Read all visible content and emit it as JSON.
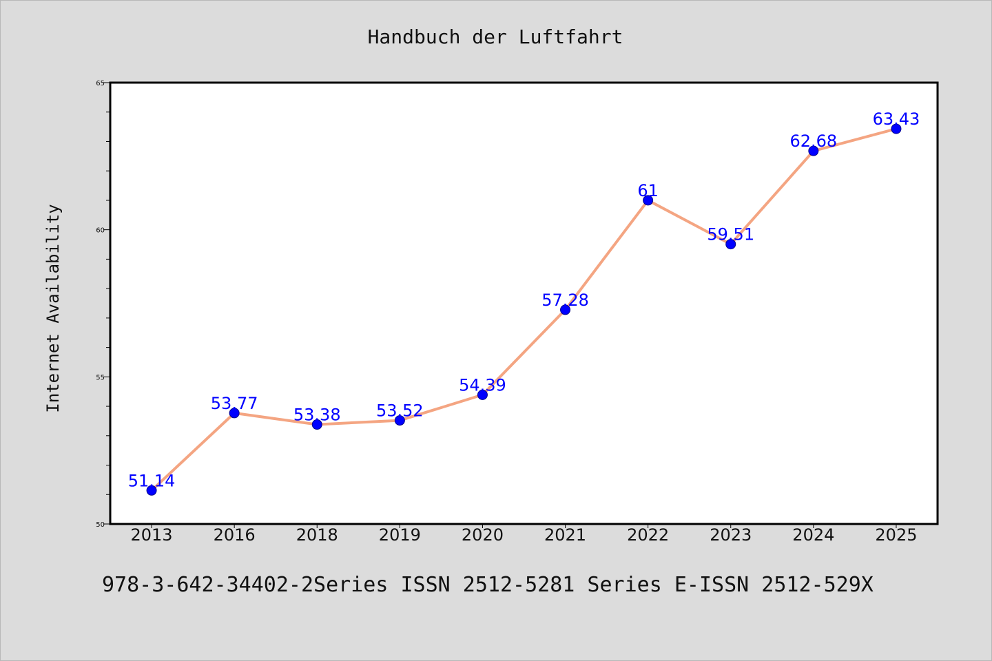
{
  "chart_data": {
    "type": "line",
    "title": "Handbuch der Luftfahrt",
    "xlabel": "",
    "ylabel": "Internet Availability",
    "categories": [
      "2013",
      "2016",
      "2018",
      "2019",
      "2020",
      "2021",
      "2022",
      "2023",
      "2024",
      "2025"
    ],
    "series": [
      {
        "values": [
          51.14,
          53.77,
          53.38,
          53.52,
          54.39,
          57.28,
          61,
          59.51,
          62.68,
          63.43
        ],
        "labels": [
          "51.14",
          "53.77",
          "53.38",
          "53.52",
          "54.39",
          "57.28",
          "61",
          "59.51",
          "62.68",
          "63.43"
        ],
        "line_color": "#f4a582",
        "marker_color": "#0000ff",
        "label_color": "#0000ff"
      }
    ],
    "ylim": [
      50,
      65
    ],
    "yticks": [
      "50",
      "55",
      "60",
      "65"
    ],
    "grid": false,
    "legend": "none"
  },
  "footer": {
    "text": "978-3-642-34402-2Series ISSN 2512-5281 Series E-ISSN 2512-529X"
  },
  "colors": {
    "background": "#dcdcdc",
    "plot_background": "#ffffff",
    "axis": "#000000"
  }
}
